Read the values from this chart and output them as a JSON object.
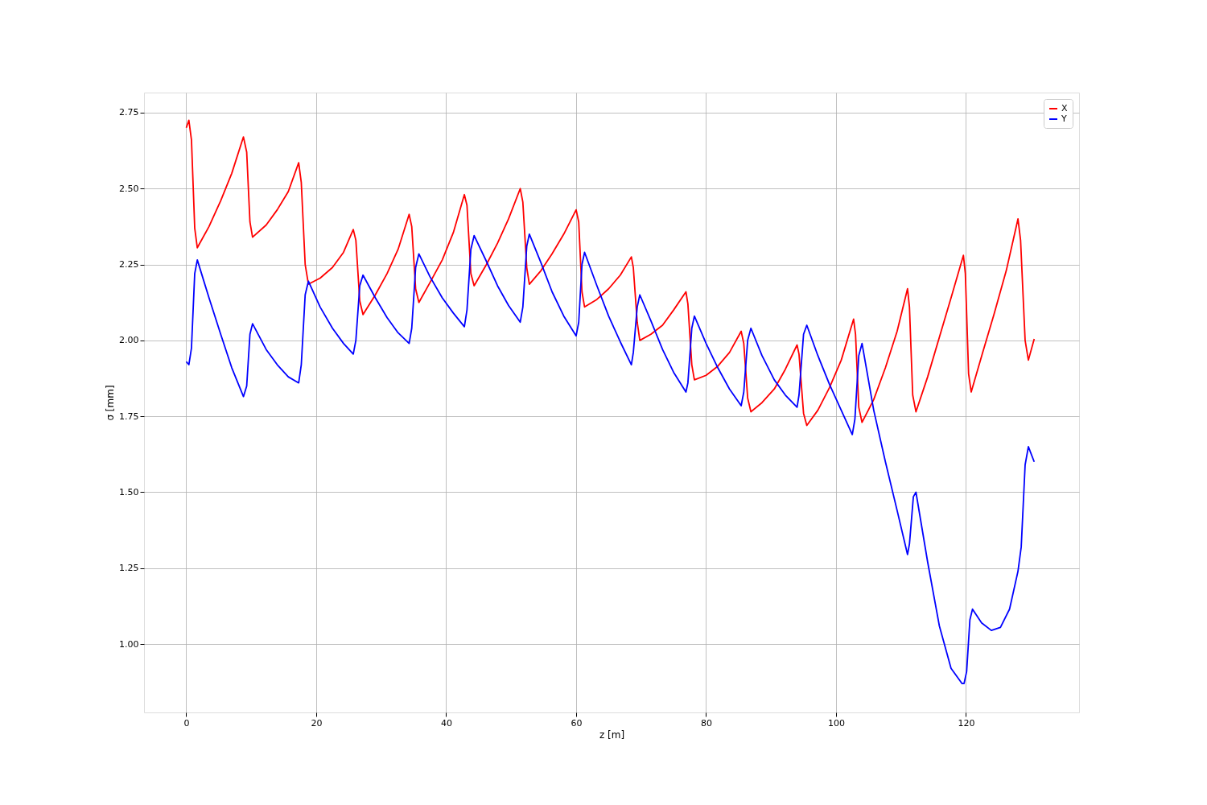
{
  "chart_data": {
    "type": "line",
    "xlabel": "z [m]",
    "ylabel": "σ [mm]",
    "xlim": [
      -6.5,
      137.4
    ],
    "ylim": [
      0.775,
      2.816
    ],
    "xticks": [
      0,
      20,
      40,
      60,
      80,
      100,
      120
    ],
    "yticks": [
      {
        "value": 1.0,
        "label": "1.00"
      },
      {
        "value": 1.25,
        "label": "1.25"
      },
      {
        "value": 1.5,
        "label": "1.50"
      },
      {
        "value": 1.75,
        "label": "1.75"
      },
      {
        "value": 2.0,
        "label": "2.00"
      },
      {
        "value": 2.25,
        "label": "2.25"
      },
      {
        "value": 2.5,
        "label": "2.50"
      },
      {
        "value": 2.75,
        "label": "2.75"
      }
    ],
    "grid": true,
    "legend": "top right",
    "marker": "none",
    "line_style": "solid",
    "x": [
      0,
      0.4,
      0.8,
      1.3,
      1.7,
      3.5,
      5.3,
      7,
      8.8,
      9.3,
      9.8,
      10.2,
      12.3,
      14,
      15.7,
      17.3,
      17.7,
      18.3,
      18.8,
      20.6,
      22.5,
      24.2,
      25.7,
      26.1,
      26.7,
      27.2,
      29.1,
      30.9,
      32.6,
      34.3,
      34.7,
      35.3,
      35.8,
      37.5,
      39.4,
      41.1,
      42.8,
      43.2,
      43.8,
      44.3,
      46.2,
      47.9,
      49.6,
      51.4,
      51.8,
      52.4,
      52.8,
      54.6,
      56.3,
      58.1,
      60,
      60.4,
      60.9,
      61.3,
      63.2,
      65,
      66.8,
      68.5,
      68.8,
      69.4,
      69.8,
      71.5,
      73.3,
      75,
      76.9,
      77.2,
      77.8,
      78.2,
      80,
      81.8,
      83.6,
      85.4,
      85.8,
      86.4,
      86.9,
      88.6,
      90.5,
      92.2,
      94,
      94.3,
      95,
      95.5,
      97.2,
      99,
      100.8,
      102.7,
      103,
      103.5,
      104,
      105.8,
      107.6,
      109.4,
      111,
      111.3,
      111.8,
      112.3,
      114.1,
      115.9,
      117.7,
      119.6,
      119.9,
      120.4,
      120.8,
      122.5,
      124.3,
      126.2,
      128,
      128.4,
      129.1,
      129.6,
      130.5
    ],
    "series": [
      {
        "name": "X",
        "color": "#ff0000",
        "values": [
          2.7,
          2.725,
          2.66,
          2.37,
          2.305,
          2.375,
          2.46,
          2.55,
          2.67,
          2.62,
          2.39,
          2.34,
          2.38,
          2.43,
          2.49,
          2.585,
          2.52,
          2.25,
          2.185,
          2.205,
          2.24,
          2.29,
          2.365,
          2.33,
          2.13,
          2.085,
          2.15,
          2.22,
          2.3,
          2.415,
          2.375,
          2.17,
          2.125,
          2.19,
          2.265,
          2.355,
          2.48,
          2.445,
          2.22,
          2.18,
          2.25,
          2.32,
          2.4,
          2.5,
          2.455,
          2.24,
          2.185,
          2.23,
          2.285,
          2.35,
          2.43,
          2.39,
          2.16,
          2.11,
          2.135,
          2.17,
          2.215,
          2.275,
          2.24,
          2.06,
          2.0,
          2.02,
          2.05,
          2.1,
          2.16,
          2.12,
          1.92,
          1.87,
          1.885,
          1.915,
          1.96,
          2.03,
          1.99,
          1.81,
          1.765,
          1.795,
          1.84,
          1.905,
          1.985,
          1.955,
          1.76,
          1.72,
          1.77,
          1.845,
          1.935,
          2.07,
          2.02,
          1.78,
          1.73,
          1.805,
          1.91,
          2.03,
          2.17,
          2.11,
          1.82,
          1.765,
          1.88,
          2.01,
          2.14,
          2.28,
          2.22,
          1.89,
          1.83,
          1.955,
          2.085,
          2.23,
          2.4,
          2.33,
          2.0,
          1.935,
          2.005
        ]
      },
      {
        "name": "Y",
        "color": "#0000ff",
        "x": [
          0,
          0.4,
          0.8,
          1.3,
          1.7,
          3.5,
          5.3,
          7,
          8.8,
          9.3,
          9.8,
          10.2,
          12.3,
          14,
          15.7,
          17.3,
          17.7,
          18.3,
          18.8,
          20.6,
          22.5,
          24.2,
          25.7,
          26.1,
          26.7,
          27.2,
          29.1,
          30.9,
          32.6,
          34.3,
          34.7,
          35.3,
          35.8,
          37.5,
          39.4,
          41.1,
          42.8,
          43.2,
          43.8,
          44.3,
          46.2,
          47.9,
          49.6,
          51.4,
          51.8,
          52.4,
          52.8,
          54.6,
          56.3,
          58.1,
          60,
          60.4,
          60.9,
          61.3,
          63.2,
          65,
          66.8,
          68.5,
          68.8,
          69.4,
          69.8,
          71.5,
          73.3,
          75,
          76.9,
          77.2,
          77.8,
          78.2,
          80,
          81.8,
          83.6,
          85.4,
          85.8,
          86.4,
          86.9,
          88.6,
          90.5,
          92.2,
          94,
          94.3,
          95,
          95.5,
          97.2,
          99,
          100.8,
          102.5,
          102.9,
          103.5,
          104,
          105.8,
          107.6,
          109.4,
          111,
          111.3,
          111.9,
          112.3,
          114.1,
          115.9,
          117.7,
          119.4,
          119.7,
          120.1,
          120.6,
          121,
          122.4,
          123.9,
          125.3,
          126.7,
          128,
          128.5,
          129.1,
          129.6,
          130.5
        ],
        "values": [
          1.93,
          1.92,
          1.975,
          2.22,
          2.265,
          2.14,
          2.02,
          1.91,
          1.815,
          1.85,
          2.02,
          2.055,
          1.97,
          1.92,
          1.88,
          1.86,
          1.92,
          2.15,
          2.195,
          2.11,
          2.04,
          1.99,
          1.955,
          2.0,
          2.18,
          2.215,
          2.14,
          2.075,
          2.025,
          1.99,
          2.04,
          2.24,
          2.285,
          2.21,
          2.14,
          2.09,
          2.045,
          2.1,
          2.3,
          2.345,
          2.26,
          2.18,
          2.115,
          2.06,
          2.11,
          2.31,
          2.35,
          2.255,
          2.16,
          2.08,
          2.015,
          2.06,
          2.25,
          2.29,
          2.18,
          2.08,
          1.995,
          1.92,
          1.96,
          2.11,
          2.15,
          2.065,
          1.97,
          1.895,
          1.83,
          1.86,
          2.04,
          2.08,
          1.99,
          1.91,
          1.84,
          1.785,
          1.83,
          2.0,
          2.04,
          1.95,
          1.87,
          1.82,
          1.78,
          1.82,
          2.02,
          2.05,
          1.95,
          1.855,
          1.77,
          1.69,
          1.74,
          1.95,
          1.99,
          1.77,
          1.6,
          1.44,
          1.295,
          1.33,
          1.485,
          1.5,
          1.27,
          1.06,
          0.92,
          0.87,
          0.87,
          0.91,
          1.08,
          1.115,
          1.07,
          1.045,
          1.055,
          1.115,
          1.24,
          1.32,
          1.59,
          1.65,
          1.6
        ]
      }
    ]
  }
}
